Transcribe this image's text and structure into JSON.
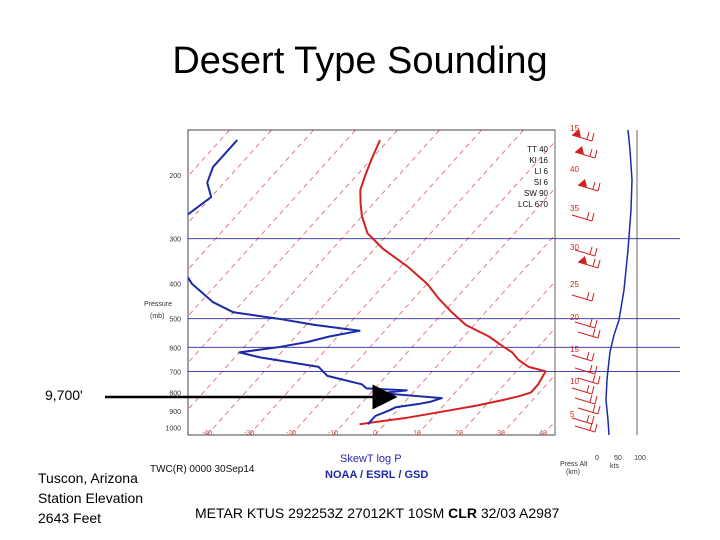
{
  "slide": {
    "title": "Desert Type Sounding",
    "altitude_label": "9,700'",
    "station_lines": [
      "Tuscon, Arizona",
      "Station Elevation",
      "2643 Feet"
    ],
    "metar_prefix": "METAR KTUS 292253Z 27012KT 10SM ",
    "metar_bold": "CLR",
    "metar_suffix": " 32/03 A2987"
  },
  "colors": {
    "temperature": "#d42020",
    "dewpoint": "#1a2aa8",
    "isobar": "#2a2aa0",
    "isotherm": "#d44a4a",
    "arrow": "#000000"
  },
  "chart_data": {
    "type": "line",
    "pressure_ticks": [
      "200",
      "300",
      "400",
      "500",
      "600",
      "700",
      "800",
      "900",
      "1000"
    ],
    "pressure_label": "Pressure",
    "pressure_unit": "(mb)",
    "temperature_ticks": [
      "-40",
      "-30",
      "-20",
      "-10",
      "0",
      "10",
      "20",
      "30",
      "40"
    ],
    "footer_left": "TWC(R) 0000 30Sep14",
    "footer_center": "SkewT log P",
    "footer_bottom": "NOAA / ESRL / GSD",
    "footer_right_title": "Press Alt",
    "footer_right_unit": "(km)",
    "wind_axis_ticks": [
      "0",
      "50",
      "100"
    ],
    "wind_axis_unit": "kts",
    "indices": [
      "TT 40",
      "KI 16",
      "LI 6",
      "SI 6",
      "SW 90",
      "LCL 670"
    ],
    "height_labels": [
      "15",
      "40",
      "35",
      "30",
      "25",
      "20",
      "15",
      "10",
      "5"
    ],
    "series": [
      {
        "name": "Temperature",
        "points": [
          [
            -6,
            980
          ],
          [
            4,
            940
          ],
          [
            12,
            900
          ],
          [
            18,
            870
          ],
          [
            23,
            840
          ],
          [
            26,
            820
          ],
          [
            28,
            800
          ],
          [
            28,
            760
          ],
          [
            27,
            700
          ],
          [
            22,
            680
          ],
          [
            18,
            650
          ],
          [
            15,
            620
          ],
          [
            12,
            600
          ],
          [
            6,
            560
          ],
          [
            -2,
            520
          ],
          [
            -8,
            480
          ],
          [
            -14,
            440
          ],
          [
            -20,
            400
          ],
          [
            -28,
            360
          ],
          [
            -38,
            320
          ],
          [
            -45,
            290
          ],
          [
            -50,
            260
          ],
          [
            -53,
            240
          ],
          [
            -56,
            220
          ],
          [
            -58,
            200
          ],
          [
            -60,
            180
          ],
          [
            -62,
            160
          ]
        ]
      },
      {
        "name": "Dewpoint",
        "points": [
          [
            -4,
            980
          ],
          [
            -4,
            930
          ],
          [
            -2,
            900
          ],
          [
            -1,
            880
          ],
          [
            4,
            860
          ],
          [
            6,
            850
          ],
          [
            8,
            830
          ],
          [
            -4,
            810
          ],
          [
            -6,
            800
          ],
          [
            -2,
            790
          ],
          [
            -12,
            780
          ],
          [
            -14,
            760
          ],
          [
            -24,
            720
          ],
          [
            -28,
            680
          ],
          [
            -44,
            640
          ],
          [
            -50,
            620
          ],
          [
            -42,
            600
          ],
          [
            -36,
            580
          ],
          [
            -32,
            560
          ],
          [
            -26,
            540
          ],
          [
            -38,
            520
          ],
          [
            -48,
            500
          ],
          [
            -60,
            480
          ],
          [
            -67,
            450
          ],
          [
            -76,
            400
          ],
          [
            -82,
            360
          ],
          [
            -88,
            320
          ],
          [
            -92,
            280
          ],
          [
            -92,
            260
          ],
          [
            -90,
            230
          ],
          [
            -94,
            210
          ],
          [
            -96,
            190
          ],
          [
            -96,
            160
          ]
        ]
      }
    ]
  }
}
